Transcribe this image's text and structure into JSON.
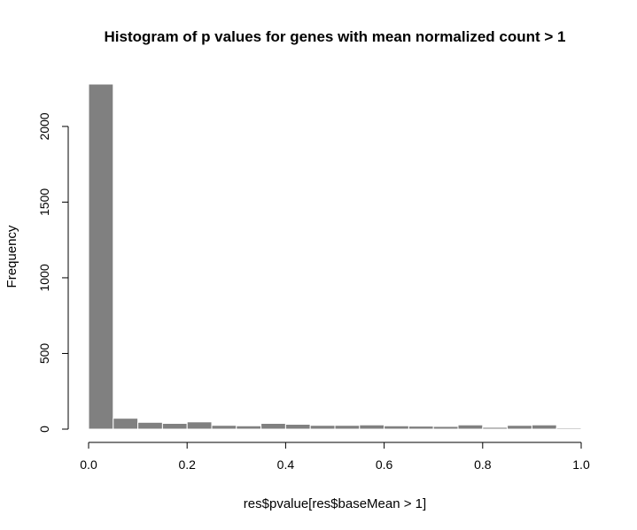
{
  "chart_data": {
    "type": "bar",
    "title": "Histogram of p values for genes with mean normalized count > 1",
    "xlabel": "res$pvalue[res$baseMean > 1]",
    "ylabel": "Frequency",
    "bin_edges": [
      0,
      0.05,
      0.1,
      0.15,
      0.2,
      0.25,
      0.3,
      0.35,
      0.4,
      0.45,
      0.5,
      0.55,
      0.6,
      0.65,
      0.7,
      0.75,
      0.8,
      0.85,
      0.9,
      0.95,
      1.0
    ],
    "values": [
      2280,
      72,
      45,
      38,
      48,
      25,
      22,
      38,
      32,
      25,
      25,
      28,
      22,
      20,
      18,
      28,
      12,
      25,
      28,
      8
    ],
    "xlim": [
      0,
      1
    ],
    "ylim": [
      0,
      2280
    ],
    "x_ticks": [
      0.0,
      0.2,
      0.4,
      0.6,
      0.8,
      1.0
    ],
    "x_tick_labels": [
      "0.0",
      "0.2",
      "0.4",
      "0.6",
      "0.8",
      "1.0"
    ],
    "y_ticks": [
      0,
      500,
      1000,
      1500,
      2000
    ],
    "y_tick_labels": [
      "0",
      "500",
      "1000",
      "1500",
      "2000"
    ],
    "bar_color": "#808080",
    "grid": false
  }
}
